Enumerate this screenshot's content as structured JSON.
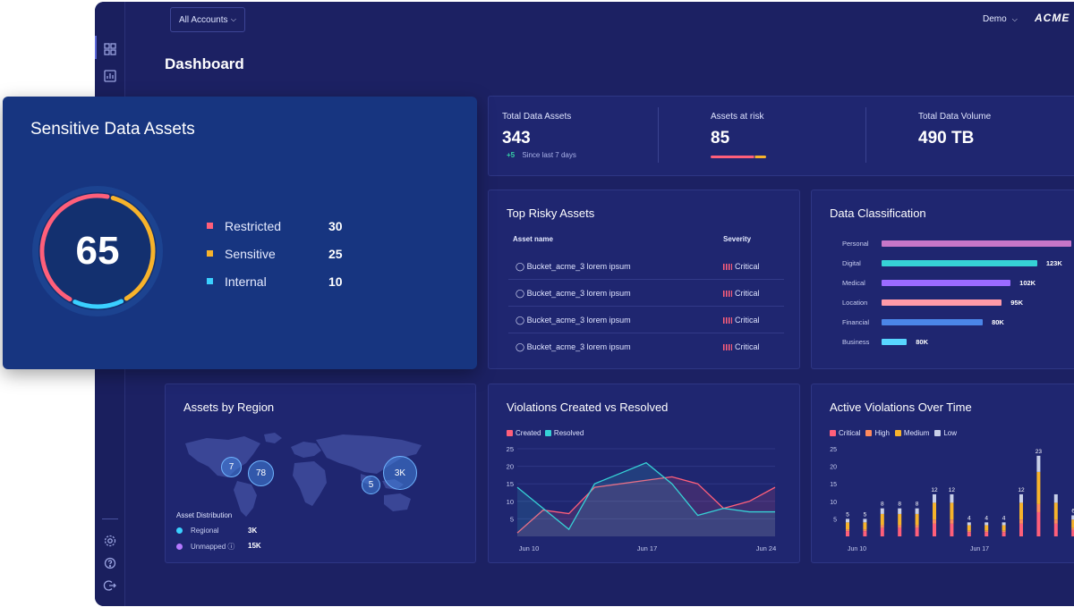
{
  "header": {
    "account_select": "All Accounts",
    "user_menu": "Demo",
    "brand": "ACME",
    "page_title": "Dashboard"
  },
  "sidebar": {
    "icons": [
      "dashboard-icon",
      "reports-icon",
      "settings-icon",
      "help-icon",
      "logout-icon"
    ]
  },
  "kpis": {
    "total": {
      "label": "Total Data Assets",
      "value": "343",
      "delta": "+5",
      "delta_note": "Since last 7 days"
    },
    "risk": {
      "label": "Assets at risk",
      "value": "85"
    },
    "volume": {
      "label": "Total Data Volume",
      "value": "490 TB"
    }
  },
  "sensitive": {
    "title": "Sensitive Data Assets",
    "total": "65",
    "items": [
      {
        "label": "Restricted",
        "value": "30",
        "color": "#ff5f7a"
      },
      {
        "label": "Sensitive",
        "value": "25",
        "color": "#f7b32b"
      },
      {
        "label": "Internal",
        "value": "10",
        "color": "#3ad0ff"
      }
    ]
  },
  "risky": {
    "title": "Top Risky Assets",
    "col_asset": "Asset name",
    "col_severity": "Severity",
    "rows": [
      {
        "name": "Bucket_acme_3 lorem ipsum",
        "severity": "Critical"
      },
      {
        "name": "Bucket_acme_3 lorem ipsum",
        "severity": "Critical"
      },
      {
        "name": "Bucket_acme_3 lorem ipsum",
        "severity": "Critical"
      },
      {
        "name": "Bucket_acme_3 lorem ipsum",
        "severity": "Critical"
      }
    ]
  },
  "classification": {
    "title": "Data Classification",
    "items": [
      {
        "label": "Personal",
        "value": 150,
        "value_label": "",
        "color": "#c776c8"
      },
      {
        "label": "Digital",
        "value": 123,
        "value_label": "123K",
        "color": "#36d2d6"
      },
      {
        "label": "Medical",
        "value": 102,
        "value_label": "102K",
        "color": "#9b6bff"
      },
      {
        "label": "Location",
        "value": 95,
        "value_label": "95K",
        "color": "#ff9aa8"
      },
      {
        "label": "Financial",
        "value": 80,
        "value_label": "80K",
        "color": "#4b86e8"
      },
      {
        "label": "Business",
        "value": 80,
        "value_label": "80K",
        "color": "#58d6ff",
        "display_value": 20
      }
    ]
  },
  "region": {
    "title": "Assets by Region",
    "bubbles": [
      "7",
      "78",
      "5",
      "3K"
    ],
    "distribution_title": "Asset Distribution",
    "rows": [
      {
        "label": "Regional",
        "value": "3K",
        "color": "#3ad0ff"
      },
      {
        "label": "Unmapped",
        "value": "15K",
        "color": "#b478ff"
      }
    ]
  },
  "chart_data": [
    {
      "type": "area",
      "title": "Violations Created vs Resolved",
      "x_ticks": [
        "Jun 10",
        "Jun 17",
        "Jun 24"
      ],
      "y_ticks": [
        5,
        10,
        15,
        20,
        25
      ],
      "ylim": [
        0,
        25
      ],
      "series": [
        {
          "name": "Created",
          "color": "#ff5f7a",
          "values": [
            1,
            7.5,
            6.5,
            14,
            15,
            16,
            17,
            15,
            8,
            10,
            14
          ]
        },
        {
          "name": "Resolved",
          "color": "#36d2d6",
          "values": [
            14,
            8,
            2,
            15,
            18,
            21,
            15,
            6,
            8,
            7,
            7
          ]
        }
      ]
    },
    {
      "type": "bar",
      "title": "Active Violations Over Time",
      "x_ticks": [
        "Jun 10",
        "Jun 17"
      ],
      "y_ticks": [
        5,
        10,
        15,
        20,
        25
      ],
      "ylim": [
        0,
        25
      ],
      "legend": [
        {
          "name": "Critical",
          "color": "#ff5f7a"
        },
        {
          "name": "High",
          "color": "#ff8a5c"
        },
        {
          "name": "Medium",
          "color": "#f7b32b"
        },
        {
          "name": "Low",
          "color": "#c8cfe8"
        }
      ],
      "totals": [
        5,
        5,
        8,
        8,
        8,
        12,
        12,
        4,
        4,
        4,
        12,
        23,
        12,
        6
      ],
      "labels": [
        "5",
        "5",
        "8",
        "8",
        "8",
        "12",
        "12",
        "4",
        "4",
        "4",
        "12",
        "23",
        "",
        "6"
      ]
    }
  ]
}
